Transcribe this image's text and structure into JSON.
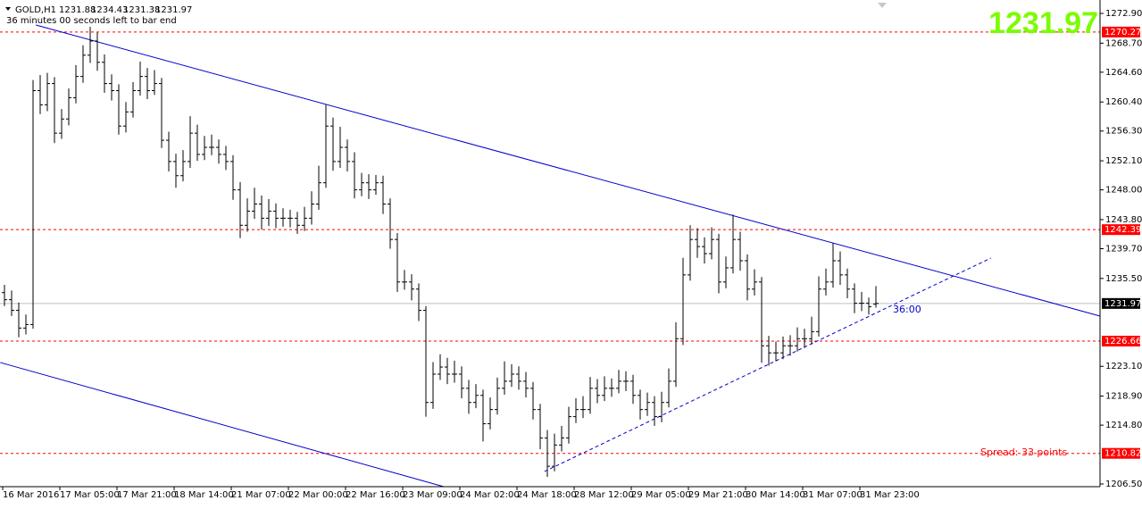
{
  "chart_data": {
    "type": "ohlc",
    "symbol": "GOLD,H1",
    "timer": "36 minutes 00 seconds left to bar end",
    "timer_short": "36:00",
    "spread": "Spread: 33 points",
    "ylim": [
      1206.12,
      1274.79
    ],
    "yticks": [
      {
        "value": 1272.9,
        "label": "1272.90"
      },
      {
        "value": 1268.7,
        "label": "1268.70"
      },
      {
        "value": 1264.6,
        "label": "1264.60"
      },
      {
        "value": 1260.4,
        "label": "1260.40"
      },
      {
        "value": 1256.3,
        "label": "1256.30"
      },
      {
        "value": 1252.1,
        "label": "1252.10"
      },
      {
        "value": 1248.0,
        "label": "1248.00"
      },
      {
        "value": 1243.8,
        "label": "1243.80"
      },
      {
        "value": 1239.7,
        "label": "1239.70"
      },
      {
        "value": 1235.5,
        "label": "1235.50"
      },
      {
        "value": 1223.1,
        "label": "1223.10"
      },
      {
        "value": 1218.9,
        "label": "1218.90"
      },
      {
        "value": 1214.8,
        "label": "1214.80"
      },
      {
        "value": 1206.5,
        "label": "1206.50"
      }
    ],
    "xticks": [
      {
        "value": 0,
        "label": "16 Mar 2016"
      },
      {
        "value": 8,
        "label": "17 Mar 05:00"
      },
      {
        "value": 16,
        "label": "17 Mar 21:00"
      },
      {
        "value": 24,
        "label": "18 Mar 14:00"
      },
      {
        "value": 32,
        "label": "21 Mar 07:00"
      },
      {
        "value": 40,
        "label": "22 Mar 00:00"
      },
      {
        "value": 48,
        "label": "22 Mar 16:00"
      },
      {
        "value": 56,
        "label": "23 Mar 09:00"
      },
      {
        "value": 64,
        "label": "24 Mar 02:00"
      },
      {
        "value": 72,
        "label": "24 Mar 18:00"
      },
      {
        "value": 80,
        "label": "28 Mar 12:00"
      },
      {
        "value": 88,
        "label": "29 Mar 05:00"
      },
      {
        "value": 96,
        "label": "29 Mar 21:00"
      },
      {
        "value": 104,
        "label": "30 Mar 14:00"
      },
      {
        "value": 112,
        "label": "31 Mar 07:00"
      },
      {
        "value": 120,
        "label": "31 Mar 23:00"
      }
    ],
    "bar_color": "#000000",
    "levels": [
      1270.27,
      1242.39,
      1226.66,
      1210.82
    ],
    "level_color": "#ff0000",
    "price_line_color": "#c0c0c0",
    "trend_color": "#0000cd",
    "trendlines": [
      {
        "points": [
          [
            4.4,
            1271.26
          ],
          [
            153.4,
            1230.19
          ]
        ],
        "style": "solid"
      },
      {
        "points": [
          [
            -0.6,
            1223.64
          ],
          [
            61.5,
            1206.12
          ]
        ],
        "style": "solid"
      },
      {
        "points": [
          [
            75.6,
            1208.27
          ],
          [
            138.1,
            1238.38
          ]
        ],
        "style": "dashed"
      }
    ],
    "ohlc": [
      [
        1233.5,
        1234.6,
        1231.6,
        1232.5
      ],
      [
        1232.5,
        1233.8,
        1230.2,
        1231
      ],
      [
        1231,
        1232.1,
        1227.2,
        1228.5
      ],
      [
        1228.5,
        1230.4,
        1227.6,
        1229
      ],
      [
        1229,
        1263.5,
        1228.4,
        1262
      ],
      [
        1262,
        1264.2,
        1258.7,
        1260
      ],
      [
        1260,
        1264.5,
        1259.1,
        1263
      ],
      [
        1263,
        1263.9,
        1254.6,
        1256
      ],
      [
        1256,
        1259.4,
        1255.2,
        1258
      ],
      [
        1258,
        1262.3,
        1257.1,
        1261
      ],
      [
        1261,
        1265.6,
        1260.2,
        1264
      ],
      [
        1264,
        1268.4,
        1263.1,
        1267
      ],
      [
        1267,
        1271,
        1265.9,
        1269
      ],
      [
        1269,
        1270.2,
        1264.8,
        1266
      ],
      [
        1266,
        1267.1,
        1261.7,
        1263
      ],
      [
        1263,
        1264.3,
        1260.6,
        1262
      ],
      [
        1262,
        1262.9,
        1255.8,
        1257
      ],
      [
        1257,
        1260.4,
        1256.1,
        1259
      ],
      [
        1259,
        1263.2,
        1258.2,
        1262
      ],
      [
        1262,
        1266.1,
        1261.3,
        1264
      ],
      [
        1264,
        1265.2,
        1260.8,
        1262
      ],
      [
        1262,
        1264.9,
        1261.4,
        1263
      ],
      [
        1263,
        1263.8,
        1253.9,
        1255
      ],
      [
        1255,
        1256.2,
        1250.6,
        1252
      ],
      [
        1252,
        1253.1,
        1248.3,
        1250
      ],
      [
        1250,
        1253.6,
        1249.2,
        1252
      ],
      [
        1252,
        1258.4,
        1251.1,
        1256
      ],
      [
        1256,
        1257.2,
        1252.1,
        1253
      ],
      [
        1253,
        1255.6,
        1252.2,
        1254
      ],
      [
        1254,
        1255.8,
        1252.9,
        1254
      ],
      [
        1254,
        1255.1,
        1251.7,
        1253
      ],
      [
        1253,
        1254.2,
        1250.8,
        1252
      ],
      [
        1252,
        1252.9,
        1246.6,
        1248
      ],
      [
        1248,
        1249.1,
        1241.2,
        1243
      ],
      [
        1243,
        1246.8,
        1242.1,
        1245
      ],
      [
        1245,
        1248.3,
        1243.9,
        1246
      ],
      [
        1246,
        1247.2,
        1242.4,
        1244
      ],
      [
        1244,
        1246.7,
        1242.9,
        1245
      ],
      [
        1245,
        1246.1,
        1242.6,
        1244
      ],
      [
        1244,
        1245.4,
        1242.8,
        1244
      ],
      [
        1244,
        1245.2,
        1242.7,
        1244
      ],
      [
        1244,
        1244.9,
        1241.8,
        1243
      ],
      [
        1243,
        1245.6,
        1242.2,
        1244
      ],
      [
        1244,
        1247.8,
        1243.1,
        1246
      ],
      [
        1246,
        1251.4,
        1245.2,
        1249
      ],
      [
        1249,
        1260,
        1248.3,
        1257
      ],
      [
        1257,
        1258.2,
        1250.7,
        1252
      ],
      [
        1252,
        1256.9,
        1251.1,
        1254
      ],
      [
        1254,
        1255.1,
        1250.6,
        1252
      ],
      [
        1252,
        1253.3,
        1246.8,
        1248
      ],
      [
        1248,
        1250.4,
        1247.1,
        1249
      ],
      [
        1249,
        1250.2,
        1246.7,
        1248
      ],
      [
        1248,
        1250.1,
        1247.3,
        1249
      ],
      [
        1249,
        1250,
        1244.6,
        1246
      ],
      [
        1246,
        1246.8,
        1239.7,
        1241
      ],
      [
        1241,
        1241.9,
        1233.6,
        1235
      ],
      [
        1235,
        1236.7,
        1233.9,
        1235
      ],
      [
        1235,
        1236.1,
        1232.4,
        1234
      ],
      [
        1234,
        1234.8,
        1229.5,
        1231
      ],
      [
        1231,
        1231.6,
        1216,
        1218
      ],
      [
        1218,
        1223.7,
        1217.1,
        1222
      ],
      [
        1222,
        1224.8,
        1221.2,
        1223
      ],
      [
        1223,
        1224.3,
        1220.6,
        1222
      ],
      [
        1222,
        1223.9,
        1220.8,
        1222
      ],
      [
        1222,
        1223.1,
        1218.6,
        1220
      ],
      [
        1220,
        1221.2,
        1216.4,
        1218
      ],
      [
        1218,
        1220.6,
        1217.2,
        1219
      ],
      [
        1219,
        1219.8,
        1212.5,
        1215
      ],
      [
        1215,
        1218.7,
        1214.2,
        1217
      ],
      [
        1217,
        1221.5,
        1216.3,
        1220
      ],
      [
        1220,
        1223.8,
        1219.1,
        1221
      ],
      [
        1221,
        1223.4,
        1220.2,
        1222
      ],
      [
        1222,
        1223.1,
        1219.8,
        1221
      ],
      [
        1221,
        1222.3,
        1218.7,
        1220
      ],
      [
        1220,
        1220.9,
        1215.6,
        1217
      ],
      [
        1217,
        1217.8,
        1211.4,
        1213
      ],
      [
        1213,
        1214.1,
        1207.5,
        1209
      ],
      [
        1209,
        1213.6,
        1208.3,
        1212
      ],
      [
        1212,
        1214.7,
        1211.1,
        1213
      ],
      [
        1213,
        1217.4,
        1212.2,
        1216
      ],
      [
        1216,
        1218.6,
        1215.1,
        1217
      ],
      [
        1217,
        1218.9,
        1215.8,
        1217
      ],
      [
        1217,
        1221.6,
        1216.4,
        1220
      ],
      [
        1220,
        1221.3,
        1217.9,
        1219
      ],
      [
        1219,
        1221.7,
        1218.2,
        1220
      ],
      [
        1220,
        1221.4,
        1218.8,
        1220
      ],
      [
        1220,
        1222.6,
        1219.3,
        1221
      ],
      [
        1221,
        1222.4,
        1219.6,
        1221
      ],
      [
        1221,
        1221.9,
        1217.8,
        1219
      ],
      [
        1219,
        1219.8,
        1215.6,
        1217
      ],
      [
        1217,
        1219.4,
        1216.1,
        1218
      ],
      [
        1218,
        1218.9,
        1214.7,
        1216
      ],
      [
        1216,
        1219.5,
        1215.2,
        1218
      ],
      [
        1218,
        1222.8,
        1217.3,
        1221
      ],
      [
        1221,
        1229.3,
        1220.2,
        1227
      ],
      [
        1227,
        1238.4,
        1226.1,
        1236
      ],
      [
        1236,
        1243,
        1235.2,
        1241
      ],
      [
        1241,
        1242.6,
        1238.4,
        1240
      ],
      [
        1240,
        1241.3,
        1237.6,
        1239
      ],
      [
        1239,
        1242.7,
        1238.2,
        1241
      ],
      [
        1241,
        1241.8,
        1233.4,
        1235
      ],
      [
        1235,
        1238.6,
        1234.1,
        1237
      ],
      [
        1237,
        1244.5,
        1236.2,
        1241
      ],
      [
        1241,
        1242.1,
        1236.6,
        1238
      ],
      [
        1238,
        1238.9,
        1232.4,
        1234
      ],
      [
        1234,
        1236.8,
        1233.1,
        1235
      ],
      [
        1235,
        1235.7,
        1223.6,
        1226
      ],
      [
        1226,
        1227.4,
        1223.2,
        1225
      ],
      [
        1225,
        1226.6,
        1223.8,
        1225
      ],
      [
        1225,
        1227.3,
        1224.1,
        1226
      ],
      [
        1226,
        1227.5,
        1224.6,
        1226
      ],
      [
        1226,
        1228.6,
        1225.2,
        1227
      ],
      [
        1227,
        1228.4,
        1225.7,
        1227
      ],
      [
        1227,
        1230.1,
        1226.2,
        1228
      ],
      [
        1228,
        1235.8,
        1227.3,
        1234
      ],
      [
        1234,
        1236.9,
        1233.1,
        1235
      ],
      [
        1235,
        1240.5,
        1234.2,
        1238
      ],
      [
        1238,
        1239.3,
        1234.6,
        1236
      ],
      [
        1236,
        1236.9,
        1232.7,
        1234
      ],
      [
        1234,
        1234.8,
        1230.6,
        1232
      ],
      [
        1232,
        1233.6,
        1230.9,
        1232
      ],
      [
        1232,
        1232.8,
        1230.4,
        1231.5
      ],
      [
        1231.88,
        1234.43,
        1231.38,
        1231.97
      ]
    ]
  }
}
